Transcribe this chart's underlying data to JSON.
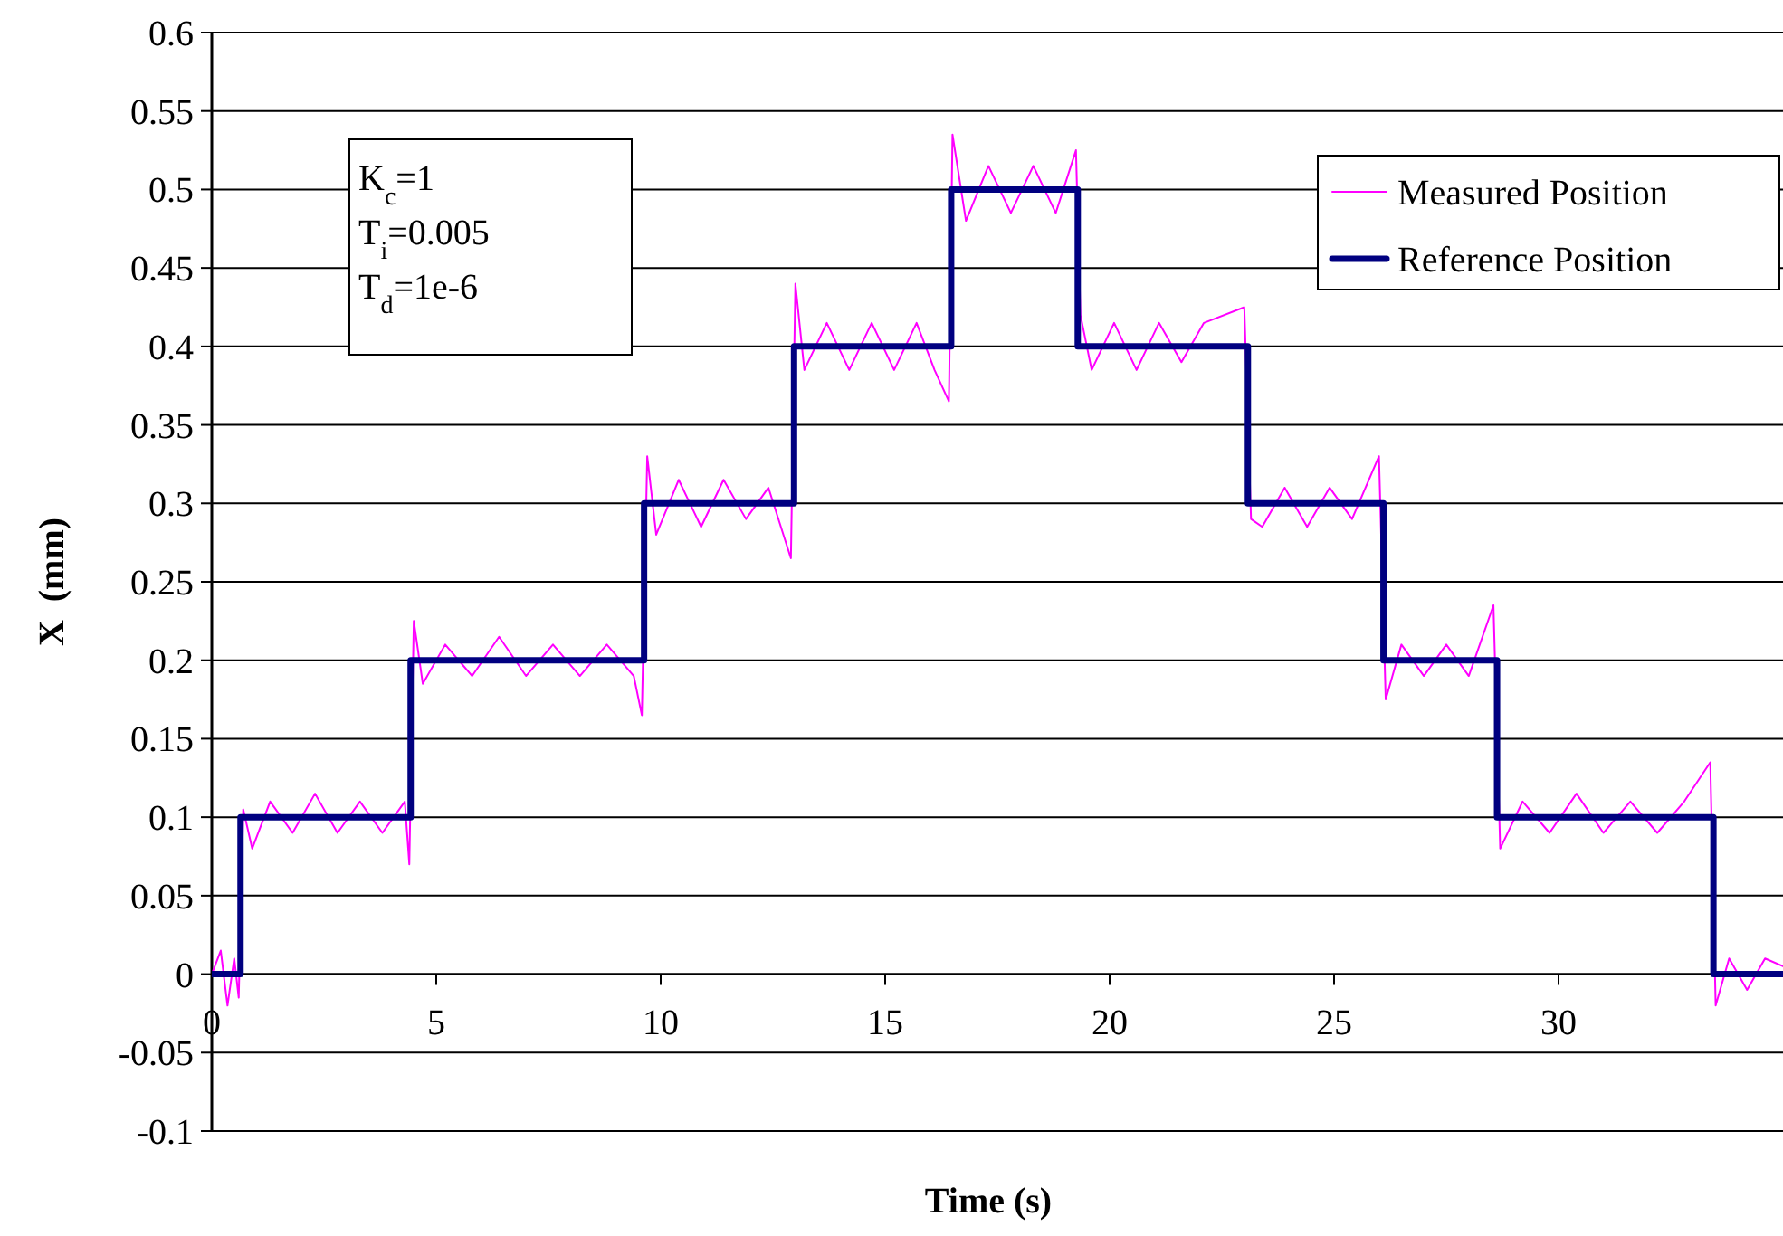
{
  "chart_data": {
    "type": "line",
    "xlabel": "Time (s)",
    "ylabel": "X  (mm)",
    "xlim": [
      0,
      35
    ],
    "xticks": [
      0,
      5,
      10,
      15,
      20,
      25,
      30
    ],
    "ylim": [
      -0.1,
      0.6
    ],
    "yticks": [
      -0.1,
      -0.05,
      0,
      0.05,
      0.1,
      0.15,
      0.2,
      0.25,
      0.3,
      0.35,
      0.4,
      0.45,
      0.5,
      0.55,
      0.6
    ],
    "grid": "y",
    "legend": "top right",
    "annotations": [
      "K$_{c}$=1",
      "T$_{i}$=0.005",
      "T$_{d}$=1e-6"
    ],
    "series": [
      {
        "name": "Measured Position",
        "color": "#ff00ff",
        "x": [
          0,
          0.2,
          0.35,
          0.5,
          0.6,
          0.7,
          0.9,
          1.3,
          1.8,
          2.3,
          2.8,
          3.3,
          3.8,
          4.3,
          4.4,
          4.5,
          4.7,
          5.2,
          5.8,
          6.4,
          7,
          7.6,
          8.2,
          8.8,
          9.4,
          9.58,
          9.7,
          9.9,
          10.4,
          10.9,
          11.4,
          11.9,
          12.4,
          12.9,
          13.0,
          13.2,
          13.7,
          14.2,
          14.7,
          15.2,
          15.7,
          16.1,
          16.42,
          16.5,
          16.8,
          17.3,
          17.8,
          18.3,
          18.8,
          19.25,
          19.35,
          19.6,
          20.1,
          20.6,
          21.1,
          21.6,
          22.1,
          23.0,
          23.15,
          23.4,
          23.9,
          24.4,
          24.9,
          25.4,
          26.0,
          26.15,
          26.5,
          27,
          27.5,
          28,
          28.55,
          28.7,
          29.2,
          29.8,
          30.4,
          31,
          31.6,
          32.2,
          32.8,
          33.38,
          33.5,
          33.8,
          34.2,
          34.6,
          35
        ],
        "values": [
          0,
          0.015,
          -0.02,
          0.01,
          -0.015,
          0.105,
          0.08,
          0.11,
          0.09,
          0.115,
          0.09,
          0.11,
          0.09,
          0.11,
          0.07,
          0.225,
          0.185,
          0.21,
          0.19,
          0.215,
          0.19,
          0.21,
          0.19,
          0.21,
          0.19,
          0.165,
          0.33,
          0.28,
          0.315,
          0.285,
          0.315,
          0.29,
          0.31,
          0.265,
          0.44,
          0.385,
          0.415,
          0.385,
          0.415,
          0.385,
          0.415,
          0.385,
          0.365,
          0.535,
          0.48,
          0.515,
          0.485,
          0.515,
          0.485,
          0.525,
          0.42,
          0.385,
          0.415,
          0.385,
          0.415,
          0.39,
          0.415,
          0.425,
          0.29,
          0.285,
          0.31,
          0.285,
          0.31,
          0.29,
          0.33,
          0.175,
          0.21,
          0.19,
          0.21,
          0.19,
          0.235,
          0.08,
          0.11,
          0.09,
          0.115,
          0.09,
          0.11,
          0.09,
          0.11,
          0.135,
          -0.02,
          0.01,
          -0.01,
          0.01,
          0.005
        ]
      },
      {
        "name": "Reference Position",
        "type": "step",
        "color": "#000080",
        "x": [
          0,
          0.64,
          4.43,
          9.63,
          12.97,
          16.47,
          19.29,
          23.08,
          26.1,
          28.63,
          33.45,
          35
        ],
        "values": [
          0,
          0.1,
          0.2,
          0.3,
          0.4,
          0.5,
          0.4,
          0.3,
          0.2,
          0.1,
          0,
          0
        ]
      }
    ]
  }
}
